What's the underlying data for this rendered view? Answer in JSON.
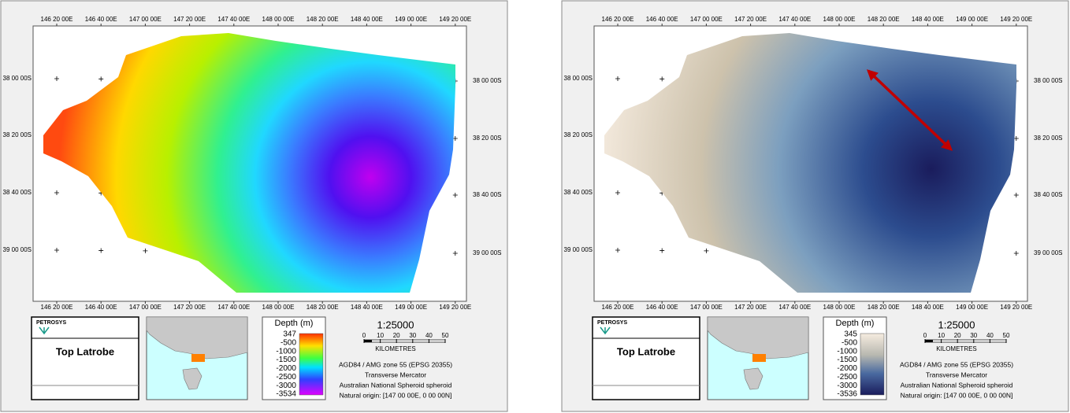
{
  "axes": {
    "longitudes": [
      "146 20 00E",
      "146 40 00E",
      "147 00 00E",
      "147 20 00E",
      "147 40 00E",
      "148 00 00E",
      "148 20 00E",
      "148 40 00E",
      "149 00 00E",
      "149 20 00E"
    ],
    "latitudes": [
      "38 00 00S",
      "38 20 00S",
      "38 40 00S",
      "39 00 00S"
    ]
  },
  "panels": [
    {
      "logo": "PETROSYS",
      "title": "Top Latrobe",
      "legend_title": "Depth (m)",
      "legend_labels": [
        "347",
        "-500",
        "-1000",
        "-1500",
        "-2000",
        "-2500",
        "-3000",
        "-3534"
      ],
      "scale": "1:25000",
      "scale_ticks": [
        "0",
        "10",
        "20",
        "30",
        "40",
        "50"
      ],
      "scale_unit": "KILOMETRES",
      "projection": [
        "AGD84 / AMG zone 55 (EPSG 20355)",
        "Transverse Mercator",
        "Australian National Spheroid spheroid",
        "Natural origin: [147 00 00E, 0 00 00N]"
      ]
    },
    {
      "logo": "PETROSYS",
      "title": "Top Latrobe",
      "legend_title": "Depth (m)",
      "legend_labels": [
        "345",
        "-500",
        "-1000",
        "-1500",
        "-2000",
        "-2500",
        "-3000",
        "-3536"
      ],
      "scale": "1:25000",
      "scale_ticks": [
        "0",
        "10",
        "20",
        "30",
        "40",
        "50"
      ],
      "scale_unit": "KILOMETRES",
      "projection": [
        "AGD84 / AMG zone 55 (EPSG 20355)",
        "Transverse Mercator",
        "Australian National Spheroid spheroid",
        "Natural origin: [147 00 00E, 0 00 00N]"
      ]
    }
  ]
}
